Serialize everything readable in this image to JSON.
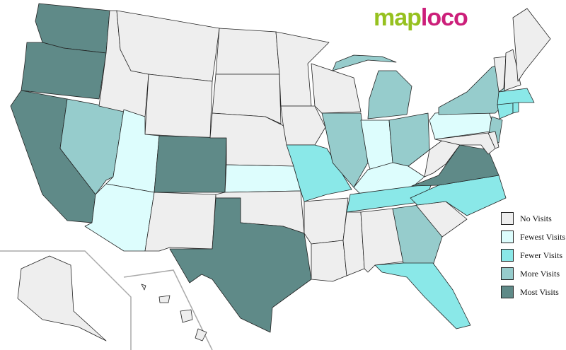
{
  "logo": {
    "part1": "map",
    "part2": "loco"
  },
  "legend": [
    {
      "level": "none",
      "label": "No Visits",
      "color": "#eeeeee"
    },
    {
      "level": "fewest",
      "label": "Fewest Visits",
      "color": "#ddfdfd"
    },
    {
      "level": "fewer",
      "label": "Fewer Visits",
      "color": "#8ae8e8"
    },
    {
      "level": "more",
      "label": "More Visits",
      "color": "#96cccc"
    },
    {
      "level": "most",
      "label": "Most Visits",
      "color": "#5f8a88"
    }
  ],
  "states": {
    "WA": "most",
    "OR": "most",
    "CA": "most",
    "NV": "more",
    "ID": "none",
    "MT": "none",
    "WY": "none",
    "UT": "fewest",
    "AZ": "fewest",
    "CO": "most",
    "NM": "none",
    "ND": "none",
    "SD": "none",
    "NE": "none",
    "KS": "fewest",
    "OK": "none",
    "TX": "most",
    "MN": "none",
    "IA": "none",
    "MO": "fewer",
    "AR": "none",
    "LA": "none",
    "WI": "none",
    "IL": "more",
    "MI": "more",
    "IN": "fewest",
    "OH": "more",
    "KY": "fewest",
    "TN": "fewer",
    "MS": "none",
    "AL": "none",
    "GA": "more",
    "FL": "fewer",
    "SC": "none",
    "NC": "fewer",
    "VA": "most",
    "WV": "none",
    "PA": "fewest",
    "NY": "more",
    "NJ": "more",
    "MD": "none",
    "DE": "none",
    "CT": "fewer",
    "MA": "fewer",
    "RI": "fewer",
    "VT": "none",
    "NH": "none",
    "ME": "none",
    "AK": "none",
    "HI": "none"
  }
}
